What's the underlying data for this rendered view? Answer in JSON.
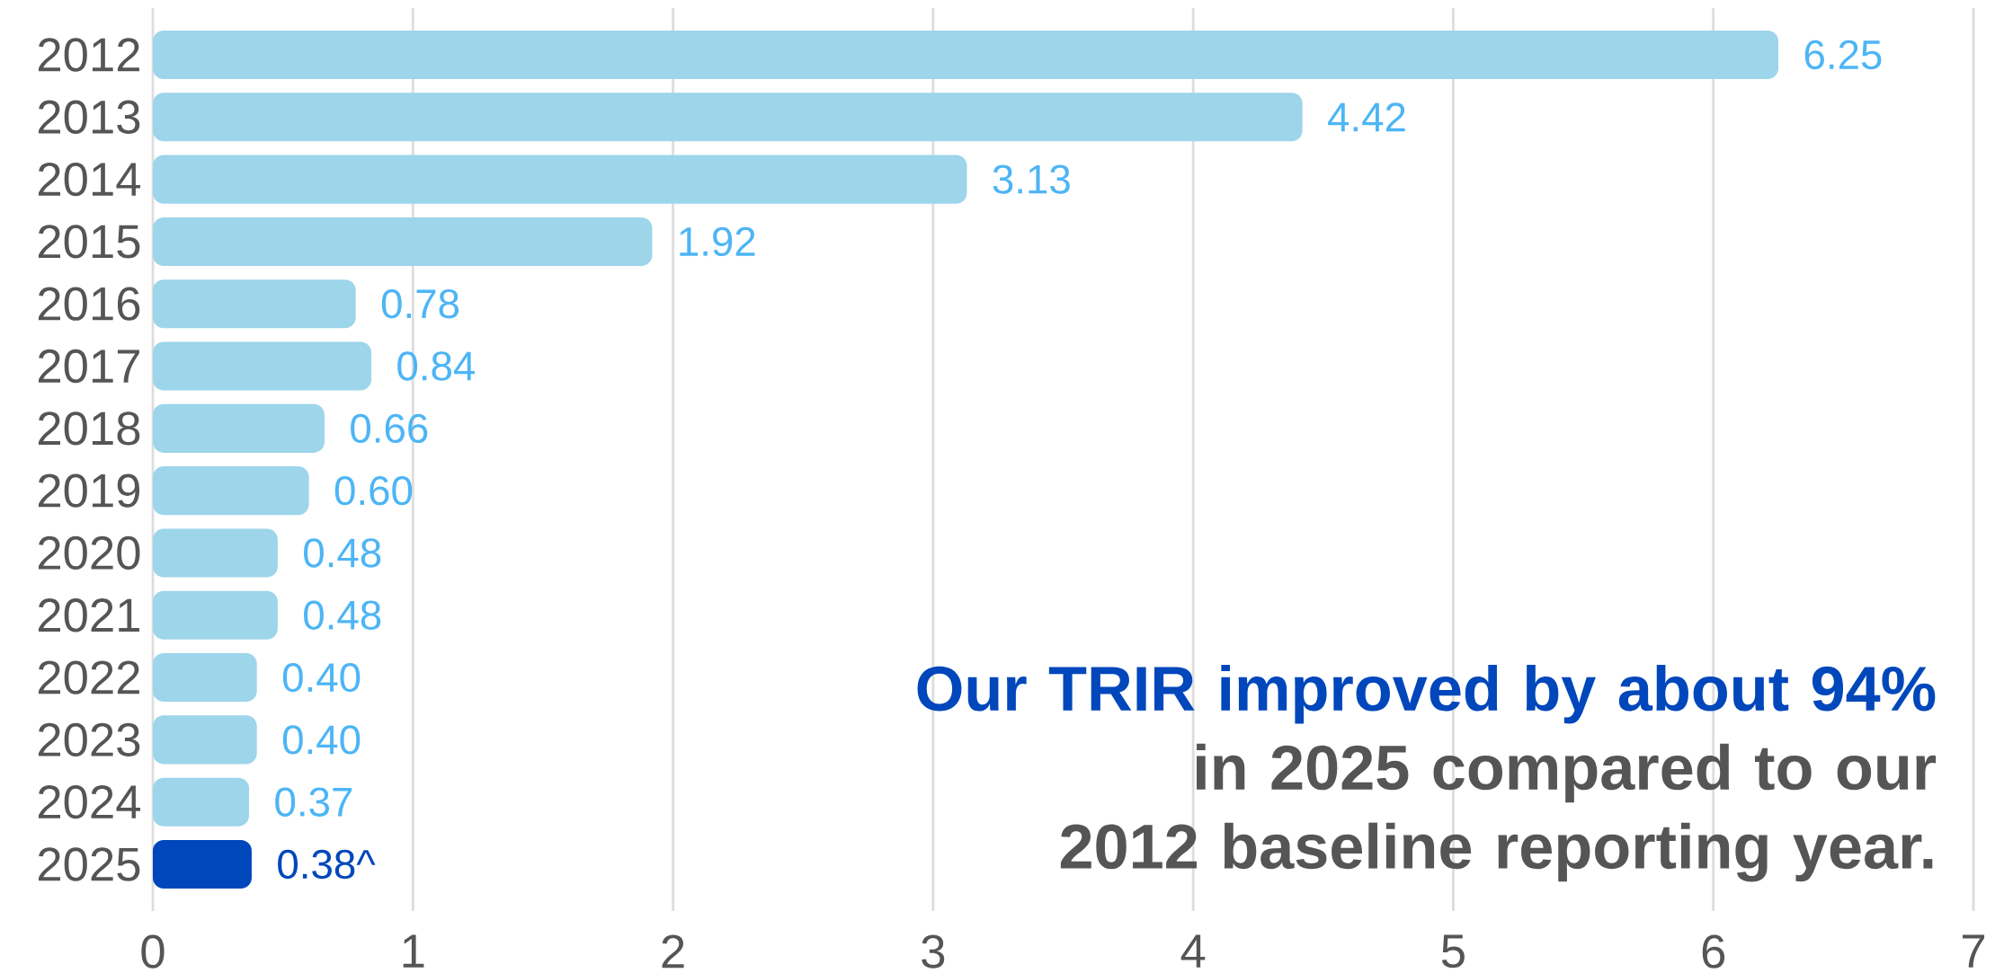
{
  "chart_data": {
    "type": "bar",
    "orientation": "horizontal",
    "categories": [
      "2012",
      "2013",
      "2014",
      "2015",
      "2016",
      "2017",
      "2018",
      "2019",
      "2020",
      "2021",
      "2022",
      "2023",
      "2024",
      "2025"
    ],
    "values": [
      6.25,
      4.42,
      3.13,
      1.92,
      0.78,
      0.84,
      0.66,
      0.6,
      0.48,
      0.48,
      0.4,
      0.4,
      0.37,
      0.38
    ],
    "value_labels": [
      "6.25",
      "4.42",
      "3.13",
      "1.92",
      "0.78",
      "0.84",
      "0.66",
      "0.60",
      "0.48",
      "0.48",
      "0.40",
      "0.40",
      "0.37",
      "0.38^"
    ],
    "colors": [
      "#9dd5ea",
      "#9dd5ea",
      "#9dd5ea",
      "#9dd5ea",
      "#9dd5ea",
      "#9dd5ea",
      "#9dd5ea",
      "#9dd5ea",
      "#9dd5ea",
      "#9dd5ea",
      "#9dd5ea",
      "#9dd5ea",
      "#9dd5ea",
      "#0047bb"
    ],
    "xlim": [
      0,
      7
    ],
    "xticks": [
      0,
      1,
      2,
      3,
      4,
      5,
      6,
      7
    ],
    "grid": "x",
    "annotations": [
      "**Our TRIR improved by about 94%**",
      "**in 2025 compared to our 2012 baseline reporting year.**"
    ]
  }
}
